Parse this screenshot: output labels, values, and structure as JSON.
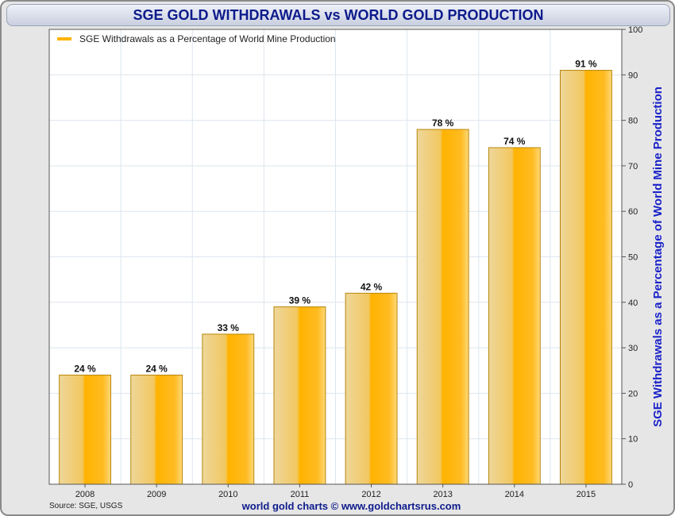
{
  "chart_data": {
    "type": "bar",
    "title": "SGE GOLD WITHDRAWALS vs WORLD GOLD PRODUCTION",
    "categories": [
      "2008",
      "2009",
      "2010",
      "2011",
      "2012",
      "2013",
      "2014",
      "2015"
    ],
    "series": [
      {
        "name": "SGE Withdrawals as a Percentage of World Mine Production",
        "values": [
          24,
          24,
          33,
          39,
          42,
          78,
          74,
          91
        ]
      }
    ],
    "data_labels": [
      "24 %",
      "24 %",
      "33 %",
      "39 %",
      "42 %",
      "78 %",
      "74 %",
      "91 %"
    ],
    "ylabel": "SGE Withdrawals as a Percentage of World Mine Production",
    "xlabel": "",
    "ylim": [
      0,
      100
    ],
    "yticks": [
      0,
      10,
      20,
      30,
      40,
      50,
      60,
      70,
      80,
      90,
      100
    ],
    "y_axis_side": "right",
    "grid": true,
    "legend_position": "top-left",
    "source": "Source: SGE, USGS",
    "credit": "world gold charts © www.goldchartsrus.com",
    "colors": {
      "bar_light": "#eed79a",
      "bar_main": "#ffb300",
      "bar_edge": "#b8860b",
      "title": "#0d1b8c",
      "ylabel": "#1a22c8",
      "grid": "#dde6ee"
    }
  }
}
